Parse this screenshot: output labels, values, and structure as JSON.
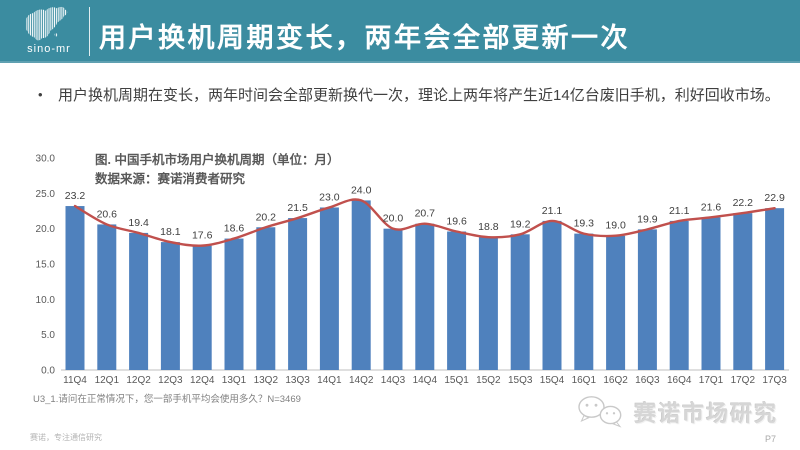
{
  "header": {
    "logo_text": "sino-mr",
    "title": "用户换机周期变长，两年会全部更新一次",
    "bg_color": "#3b8ca0"
  },
  "bullet": {
    "marker": "•",
    "text": "用户换机周期在变长，两年时间会全部更新换代一次，理论上两年将产生近14亿台废旧手机，利好回收市场。"
  },
  "chart_data": {
    "type": "bar",
    "title": "图. 中国手机市场用户换机周期（单位：月）",
    "source": "数据来源：赛诺消费者研究",
    "categories": [
      "11Q4",
      "12Q1",
      "12Q2",
      "12Q3",
      "12Q4",
      "13Q1",
      "13Q2",
      "13Q3",
      "14Q1",
      "14Q2",
      "14Q3",
      "14Q4",
      "15Q1",
      "15Q2",
      "15Q3",
      "15Q4",
      "16Q1",
      "16Q2",
      "16Q3",
      "16Q4",
      "17Q1",
      "17Q2",
      "17Q3"
    ],
    "values": [
      23.2,
      20.6,
      19.4,
      18.1,
      17.6,
      18.6,
      20.2,
      21.5,
      23.0,
      24.0,
      20.0,
      20.7,
      19.6,
      18.8,
      19.2,
      21.1,
      19.3,
      19.0,
      19.9,
      21.1,
      21.6,
      22.2,
      22.9
    ],
    "ylim": [
      0,
      30
    ],
    "ytick_step": 5,
    "yticks": [
      "30.0",
      "25.0",
      "20.0",
      "15.0",
      "10.0",
      "5.0",
      "0.0"
    ],
    "grid": false,
    "legend": "none",
    "overlay_line": true,
    "bar_color": "#4f81bd",
    "line_color": "#c0504d",
    "value_label_color": "#404040",
    "tick_label_color": "#595959"
  },
  "footnote": "U3_1.请问在正常情况下，您一部手机平均会使用多久？N=3469",
  "footer": {
    "left_text": "赛诺，专注通信研究",
    "wechat_label": "赛诺市场研究",
    "page_number": "P7"
  }
}
